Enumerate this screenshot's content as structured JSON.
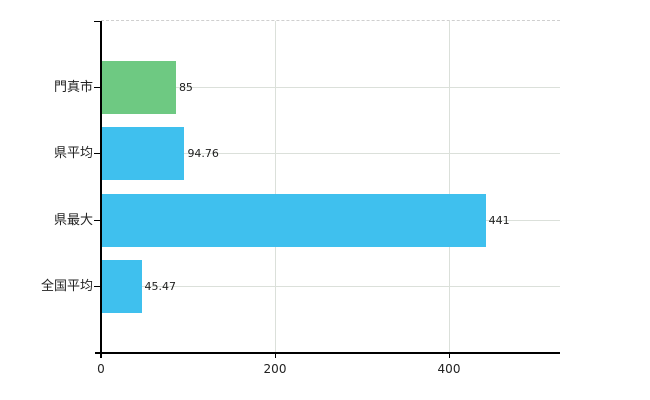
{
  "chart_data": {
    "type": "bar",
    "orientation": "horizontal",
    "title": "",
    "xlabel": "",
    "ylabel": "",
    "categories": [
      "門真市",
      "県平均",
      "県最大",
      "全国平均"
    ],
    "values": [
      85,
      94.76,
      441,
      45.47
    ],
    "value_labels": [
      "85",
      "94.76",
      "441",
      "45.47"
    ],
    "bar_colors": [
      "#6ec982",
      "#3fc0ee",
      "#3fc0ee",
      "#3fc0ee"
    ],
    "x_ticks": [
      0,
      200,
      400
    ],
    "x_tick_labels": [
      "0",
      "200",
      "400"
    ],
    "xlim": [
      0,
      528
    ],
    "grid": true,
    "legend": "none",
    "colors": {
      "accent_green": "#6ec982",
      "accent_blue": "#3fc0ee",
      "axis": "#000000",
      "grid": "#dbe0da",
      "grid_top_dashed": "#cfcfcf",
      "text": "#222222",
      "background": "#ffffff"
    }
  }
}
